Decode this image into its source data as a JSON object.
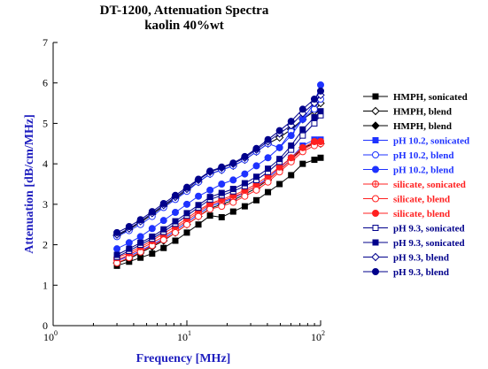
{
  "chart_data": {
    "type": "line",
    "title": "DT-1200, Attenuation Spectra",
    "subtitle": "kaolin 40%wt",
    "xlabel": "Frequency [MHz]",
    "ylabel": "Attenuation [dB/cm/MHz]",
    "xscale": "log",
    "xlim": [
      1,
      100
    ],
    "ylim": [
      0,
      7
    ],
    "x_ticks": [
      {
        "base": "10",
        "exp": "0",
        "value": 1
      },
      {
        "base": "10",
        "exp": "1",
        "value": 10
      },
      {
        "base": "10",
        "exp": "2",
        "value": 100
      }
    ],
    "y_ticks": [
      "0",
      "1",
      "2",
      "3",
      "4",
      "5",
      "6",
      "7"
    ],
    "grid": false,
    "legend_position": "right",
    "x": [
      3.0,
      3.7,
      4.5,
      5.5,
      6.7,
      8.2,
      10.0,
      12.2,
      14.9,
      18.2,
      22.2,
      27.1,
      33.1,
      40.4,
      49.3,
      60.2,
      73.5,
      89.8,
      100.0
    ],
    "series": [
      {
        "name": "HMPH, sonicated",
        "color": "#000000",
        "marker": "square",
        "fill": "filled",
        "values": [
          1.48,
          1.58,
          1.68,
          1.78,
          1.92,
          2.1,
          2.3,
          2.5,
          2.72,
          2.68,
          2.82,
          2.95,
          3.1,
          3.3,
          3.5,
          3.72,
          4.0,
          4.1,
          4.15
        ]
      },
      {
        "name": "HMPH, blend",
        "color": "#000000",
        "marker": "diamond",
        "fill": "open",
        "values": [
          2.22,
          2.38,
          2.55,
          2.75,
          2.95,
          3.15,
          3.35,
          3.55,
          3.75,
          3.85,
          3.95,
          4.1,
          4.3,
          4.5,
          4.65,
          4.85,
          5.1,
          5.3,
          5.5
        ]
      },
      {
        "name": "HMPH, blend",
        "color": "#000000",
        "marker": "diamond",
        "fill": "filled",
        "values": [
          1.55,
          1.65,
          1.8,
          1.95,
          2.1,
          2.3,
          2.5,
          2.7,
          2.9,
          3.0,
          3.1,
          3.25,
          3.4,
          3.6,
          3.85,
          4.1,
          4.4,
          4.5,
          4.5
        ]
      },
      {
        "name": "pH 10.2, sonicated",
        "color": "#1e32ff",
        "marker": "square",
        "fill": "filled",
        "values": [
          1.6,
          1.72,
          1.85,
          2.0,
          2.15,
          2.35,
          2.55,
          2.75,
          2.95,
          3.05,
          3.15,
          3.3,
          3.45,
          3.65,
          3.9,
          4.15,
          4.45,
          4.6,
          4.6
        ]
      },
      {
        "name": "pH 10.2, blend",
        "color": "#1e32ff",
        "marker": "circle",
        "fill": "open",
        "values": [
          2.2,
          2.35,
          2.5,
          2.7,
          2.92,
          3.12,
          3.32,
          3.55,
          3.75,
          3.85,
          3.95,
          4.1,
          4.3,
          4.5,
          4.4,
          4.8,
          5.1,
          5.35,
          5.6
        ]
      },
      {
        "name": "pH 10.2, blend",
        "color": "#1e32ff",
        "marker": "circle",
        "fill": "filled",
        "values": [
          1.9,
          2.05,
          2.2,
          2.4,
          2.6,
          2.8,
          3.0,
          3.2,
          3.35,
          3.5,
          3.6,
          3.75,
          3.95,
          4.15,
          4.4,
          4.7,
          5.1,
          5.5,
          5.95
        ]
      },
      {
        "name": "silicate, sonicated",
        "color": "#ff2020",
        "marker": "circle-plus",
        "fill": "open",
        "values": [
          1.62,
          1.75,
          1.9,
          2.05,
          2.2,
          2.4,
          2.6,
          2.8,
          3.0,
          3.08,
          3.18,
          3.3,
          3.45,
          3.6,
          3.85,
          4.1,
          4.35,
          4.5,
          4.55
        ]
      },
      {
        "name": "silicate, blend",
        "color": "#ff2020",
        "marker": "circle",
        "fill": "open",
        "values": [
          1.55,
          1.68,
          1.82,
          1.98,
          2.12,
          2.3,
          2.5,
          2.7,
          2.88,
          2.95,
          3.05,
          3.2,
          3.35,
          3.55,
          3.8,
          4.05,
          4.3,
          4.45,
          4.5
        ]
      },
      {
        "name": "silicate, blend",
        "color": "#ff2020",
        "marker": "circle",
        "fill": "filled",
        "values": [
          1.68,
          1.8,
          1.95,
          2.1,
          2.28,
          2.45,
          2.65,
          2.85,
          3.02,
          3.12,
          3.22,
          3.35,
          3.5,
          3.7,
          3.92,
          4.15,
          4.4,
          4.55,
          4.55
        ]
      },
      {
        "name": "pH 9.3, sonicated",
        "color": "#00008b",
        "marker": "square",
        "fill": "open",
        "values": [
          1.7,
          1.85,
          2.0,
          2.15,
          2.32,
          2.52,
          2.72,
          2.92,
          3.12,
          3.22,
          3.32,
          3.45,
          3.6,
          3.8,
          4.05,
          4.35,
          4.7,
          5.0,
          5.2
        ]
      },
      {
        "name": "pH 9.3, sonicated",
        "color": "#00008b",
        "marker": "square",
        "fill": "filled",
        "values": [
          1.75,
          1.9,
          2.05,
          2.2,
          2.38,
          2.58,
          2.78,
          2.98,
          3.18,
          3.28,
          3.38,
          3.52,
          3.68,
          3.88,
          4.12,
          4.45,
          4.85,
          5.15,
          5.3
        ]
      },
      {
        "name": "pH 9.3, blend",
        "color": "#00008b",
        "marker": "diamond",
        "fill": "open",
        "values": [
          2.25,
          2.4,
          2.58,
          2.78,
          2.98,
          3.18,
          3.38,
          3.6,
          3.8,
          3.9,
          4.0,
          4.15,
          4.35,
          4.55,
          4.75,
          4.95,
          5.25,
          5.5,
          5.7
        ]
      },
      {
        "name": "pH 9.3, blend",
        "color": "#00008b",
        "marker": "circle",
        "fill": "filled",
        "values": [
          2.3,
          2.45,
          2.62,
          2.82,
          3.02,
          3.22,
          3.42,
          3.62,
          3.82,
          3.92,
          4.02,
          4.18,
          4.38,
          4.6,
          4.82,
          5.05,
          5.35,
          5.6,
          5.8
        ]
      }
    ]
  }
}
